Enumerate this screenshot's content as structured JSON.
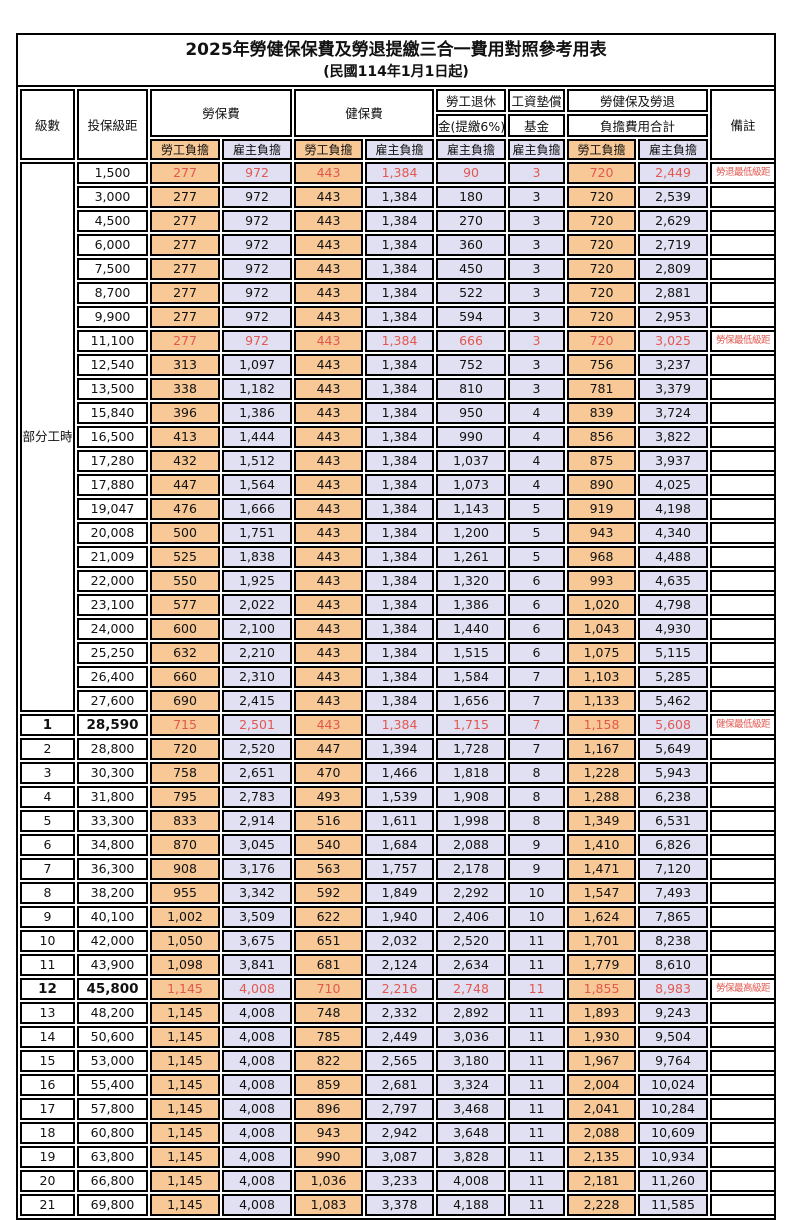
{
  "title": "2025年勞健保保費及勞退提繳三合一費用對照參考用表",
  "subtitle": "(民國114年1月1日起)",
  "colors": {
    "employee_bg": "#F8C997",
    "employer_bg": "#E1E0F3",
    "highlight_red": "#E2574F",
    "border": "#000000"
  },
  "table": {
    "header": {
      "level": "級數",
      "bracket": "投保級距",
      "labor_insurance": "勞保費",
      "health_insurance": "健保費",
      "pension_line1": "勞工退休",
      "pension_line2": "金(提繳6%)",
      "wage_fund_line1": "工資墊償",
      "wage_fund_line2": "基金",
      "total_line1": "勞健保及勞退",
      "total_line2": "負擔費用合計",
      "remarks": "備註",
      "employee_share": "勞工負擔",
      "employer_share": "雇主負擔"
    },
    "rows": [
      {
        "level": "部分工時",
        "level_rowspan": 23,
        "bracket": "1,500",
        "values": [
          "277",
          "972",
          "443",
          "1,384",
          "90",
          "3",
          "720",
          "2,449"
        ],
        "red": true,
        "note": "勞退最低級距"
      },
      {
        "bracket": "3,000",
        "values": [
          "277",
          "972",
          "443",
          "1,384",
          "180",
          "3",
          "720",
          "2,539"
        ],
        "red": false,
        "note": ""
      },
      {
        "bracket": "4,500",
        "values": [
          "277",
          "972",
          "443",
          "1,384",
          "270",
          "3",
          "720",
          "2,629"
        ],
        "red": false,
        "note": ""
      },
      {
        "bracket": "6,000",
        "values": [
          "277",
          "972",
          "443",
          "1,384",
          "360",
          "3",
          "720",
          "2,719"
        ],
        "red": false,
        "note": ""
      },
      {
        "bracket": "7,500",
        "values": [
          "277",
          "972",
          "443",
          "1,384",
          "450",
          "3",
          "720",
          "2,809"
        ],
        "red": false,
        "note": ""
      },
      {
        "bracket": "8,700",
        "values": [
          "277",
          "972",
          "443",
          "1,384",
          "522",
          "3",
          "720",
          "2,881"
        ],
        "red": false,
        "note": ""
      },
      {
        "bracket": "9,900",
        "values": [
          "277",
          "972",
          "443",
          "1,384",
          "594",
          "3",
          "720",
          "2,953"
        ],
        "red": false,
        "note": ""
      },
      {
        "bracket": "11,100",
        "values": [
          "277",
          "972",
          "443",
          "1,384",
          "666",
          "3",
          "720",
          "3,025"
        ],
        "red": true,
        "note": "勞保最低級距"
      },
      {
        "bracket": "12,540",
        "values": [
          "313",
          "1,097",
          "443",
          "1,384",
          "752",
          "3",
          "756",
          "3,237"
        ],
        "red": false,
        "note": ""
      },
      {
        "bracket": "13,500",
        "values": [
          "338",
          "1,182",
          "443",
          "1,384",
          "810",
          "3",
          "781",
          "3,379"
        ],
        "red": false,
        "note": ""
      },
      {
        "bracket": "15,840",
        "values": [
          "396",
          "1,386",
          "443",
          "1,384",
          "950",
          "4",
          "839",
          "3,724"
        ],
        "red": false,
        "note": ""
      },
      {
        "bracket": "16,500",
        "values": [
          "413",
          "1,444",
          "443",
          "1,384",
          "990",
          "4",
          "856",
          "3,822"
        ],
        "red": false,
        "note": ""
      },
      {
        "bracket": "17,280",
        "values": [
          "432",
          "1,512",
          "443",
          "1,384",
          "1,037",
          "4",
          "875",
          "3,937"
        ],
        "red": false,
        "note": ""
      },
      {
        "bracket": "17,880",
        "values": [
          "447",
          "1,564",
          "443",
          "1,384",
          "1,073",
          "4",
          "890",
          "4,025"
        ],
        "red": false,
        "note": ""
      },
      {
        "bracket": "19,047",
        "values": [
          "476",
          "1,666",
          "443",
          "1,384",
          "1,143",
          "5",
          "919",
          "4,198"
        ],
        "red": false,
        "note": ""
      },
      {
        "bracket": "20,008",
        "values": [
          "500",
          "1,751",
          "443",
          "1,384",
          "1,200",
          "5",
          "943",
          "4,340"
        ],
        "red": false,
        "note": ""
      },
      {
        "bracket": "21,009",
        "values": [
          "525",
          "1,838",
          "443",
          "1,384",
          "1,261",
          "5",
          "968",
          "4,488"
        ],
        "red": false,
        "note": ""
      },
      {
        "bracket": "22,000",
        "values": [
          "550",
          "1,925",
          "443",
          "1,384",
          "1,320",
          "6",
          "993",
          "4,635"
        ],
        "red": false,
        "note": ""
      },
      {
        "bracket": "23,100",
        "values": [
          "577",
          "2,022",
          "443",
          "1,384",
          "1,386",
          "6",
          "1,020",
          "4,798"
        ],
        "red": false,
        "note": ""
      },
      {
        "bracket": "24,000",
        "values": [
          "600",
          "2,100",
          "443",
          "1,384",
          "1,440",
          "6",
          "1,043",
          "4,930"
        ],
        "red": false,
        "note": ""
      },
      {
        "bracket": "25,250",
        "values": [
          "632",
          "2,210",
          "443",
          "1,384",
          "1,515",
          "6",
          "1,075",
          "5,115"
        ],
        "red": false,
        "note": ""
      },
      {
        "bracket": "26,400",
        "values": [
          "660",
          "2,310",
          "443",
          "1,384",
          "1,584",
          "7",
          "1,103",
          "5,285"
        ],
        "red": false,
        "note": ""
      },
      {
        "bracket": "27,600",
        "values": [
          "690",
          "2,415",
          "443",
          "1,384",
          "1,656",
          "7",
          "1,133",
          "5,462"
        ],
        "red": false,
        "note": ""
      },
      {
        "level": "1",
        "bracket": "28,590",
        "values": [
          "715",
          "2,501",
          "443",
          "1,384",
          "1,715",
          "7",
          "1,158",
          "5,608"
        ],
        "red": true,
        "bold": true,
        "note": "健保最低級距"
      },
      {
        "level": "2",
        "bracket": "28,800",
        "values": [
          "720",
          "2,520",
          "447",
          "1,394",
          "1,728",
          "7",
          "1,167",
          "5,649"
        ],
        "red": false,
        "note": ""
      },
      {
        "level": "3",
        "bracket": "30,300",
        "values": [
          "758",
          "2,651",
          "470",
          "1,466",
          "1,818",
          "8",
          "1,228",
          "5,943"
        ],
        "red": false,
        "note": ""
      },
      {
        "level": "4",
        "bracket": "31,800",
        "values": [
          "795",
          "2,783",
          "493",
          "1,539",
          "1,908",
          "8",
          "1,288",
          "6,238"
        ],
        "red": false,
        "note": ""
      },
      {
        "level": "5",
        "bracket": "33,300",
        "values": [
          "833",
          "2,914",
          "516",
          "1,611",
          "1,998",
          "8",
          "1,349",
          "6,531"
        ],
        "red": false,
        "note": ""
      },
      {
        "level": "6",
        "bracket": "34,800",
        "values": [
          "870",
          "3,045",
          "540",
          "1,684",
          "2,088",
          "9",
          "1,410",
          "6,826"
        ],
        "red": false,
        "note": ""
      },
      {
        "level": "7",
        "bracket": "36,300",
        "values": [
          "908",
          "3,176",
          "563",
          "1,757",
          "2,178",
          "9",
          "1,471",
          "7,120"
        ],
        "red": false,
        "note": ""
      },
      {
        "level": "8",
        "bracket": "38,200",
        "values": [
          "955",
          "3,342",
          "592",
          "1,849",
          "2,292",
          "10",
          "1,547",
          "7,493"
        ],
        "red": false,
        "note": ""
      },
      {
        "level": "9",
        "bracket": "40,100",
        "values": [
          "1,002",
          "3,509",
          "622",
          "1,940",
          "2,406",
          "10",
          "1,624",
          "7,865"
        ],
        "red": false,
        "note": ""
      },
      {
        "level": "10",
        "bracket": "42,000",
        "values": [
          "1,050",
          "3,675",
          "651",
          "2,032",
          "2,520",
          "11",
          "1,701",
          "8,238"
        ],
        "red": false,
        "note": ""
      },
      {
        "level": "11",
        "bracket": "43,900",
        "values": [
          "1,098",
          "3,841",
          "681",
          "2,124",
          "2,634",
          "11",
          "1,779",
          "8,610"
        ],
        "red": false,
        "note": ""
      },
      {
        "level": "12",
        "bracket": "45,800",
        "values": [
          "1,145",
          "4,008",
          "710",
          "2,216",
          "2,748",
          "11",
          "1,855",
          "8,983"
        ],
        "red": true,
        "bold": true,
        "note": "勞保最高級距"
      },
      {
        "level": "13",
        "bracket": "48,200",
        "values": [
          "1,145",
          "4,008",
          "748",
          "2,332",
          "2,892",
          "11",
          "1,893",
          "9,243"
        ],
        "red": false,
        "note": ""
      },
      {
        "level": "14",
        "bracket": "50,600",
        "values": [
          "1,145",
          "4,008",
          "785",
          "2,449",
          "3,036",
          "11",
          "1,930",
          "9,504"
        ],
        "red": false,
        "note": ""
      },
      {
        "level": "15",
        "bracket": "53,000",
        "values": [
          "1,145",
          "4,008",
          "822",
          "2,565",
          "3,180",
          "11",
          "1,967",
          "9,764"
        ],
        "red": false,
        "note": ""
      },
      {
        "level": "16",
        "bracket": "55,400",
        "values": [
          "1,145",
          "4,008",
          "859",
          "2,681",
          "3,324",
          "11",
          "2,004",
          "10,024"
        ],
        "red": false,
        "note": ""
      },
      {
        "level": "17",
        "bracket": "57,800",
        "values": [
          "1,145",
          "4,008",
          "896",
          "2,797",
          "3,468",
          "11",
          "2,041",
          "10,284"
        ],
        "red": false,
        "note": ""
      },
      {
        "level": "18",
        "bracket": "60,800",
        "values": [
          "1,145",
          "4,008",
          "943",
          "2,942",
          "3,648",
          "11",
          "2,088",
          "10,609"
        ],
        "red": false,
        "note": ""
      },
      {
        "level": "19",
        "bracket": "63,800",
        "values": [
          "1,145",
          "4,008",
          "990",
          "3,087",
          "3,828",
          "11",
          "2,135",
          "10,934"
        ],
        "red": false,
        "note": ""
      },
      {
        "level": "20",
        "bracket": "66,800",
        "values": [
          "1,145",
          "4,008",
          "1,036",
          "3,233",
          "4,008",
          "11",
          "2,181",
          "11,260"
        ],
        "red": false,
        "note": ""
      },
      {
        "level": "21",
        "bracket": "69,800",
        "values": [
          "1,145",
          "4,008",
          "1,083",
          "3,378",
          "4,188",
          "11",
          "2,228",
          "11,585"
        ],
        "red": false,
        "note": ""
      }
    ]
  }
}
